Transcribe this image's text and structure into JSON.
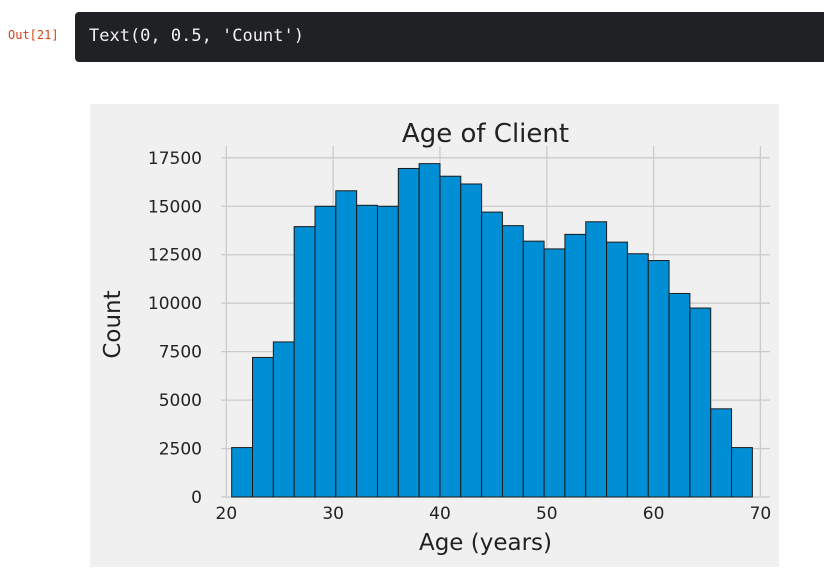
{
  "cell": {
    "out_prompt": "Out[21]",
    "output_text": "Text(0, 0.5, 'Count')"
  },
  "chart_data": {
    "type": "bar",
    "title": "Age of Client",
    "xlabel": "Age (years)",
    "ylabel": "Count",
    "xlim": [
      19.5,
      70.9
    ],
    "ylim": [
      0,
      17800
    ],
    "xticks": [
      20,
      30,
      40,
      50,
      60,
      70
    ],
    "yticks": [
      0,
      2500,
      5000,
      7500,
      10000,
      12500,
      15000,
      17500
    ],
    "grid": true,
    "bin_start": 20.5,
    "bin_width": 1.95,
    "values": [
      2550,
      7200,
      8000,
      13950,
      15000,
      15800,
      15050,
      15000,
      16950,
      17200,
      16550,
      16150,
      14700,
      14000,
      13200,
      12800,
      13550,
      14200,
      13150,
      12550,
      12200,
      10500,
      9750,
      4550,
      2550
    ],
    "colors": {
      "bar": "#008fd5",
      "edge": "#1a1a1a",
      "grid": "#cbcbcb",
      "background": "#f0f0f0"
    }
  }
}
